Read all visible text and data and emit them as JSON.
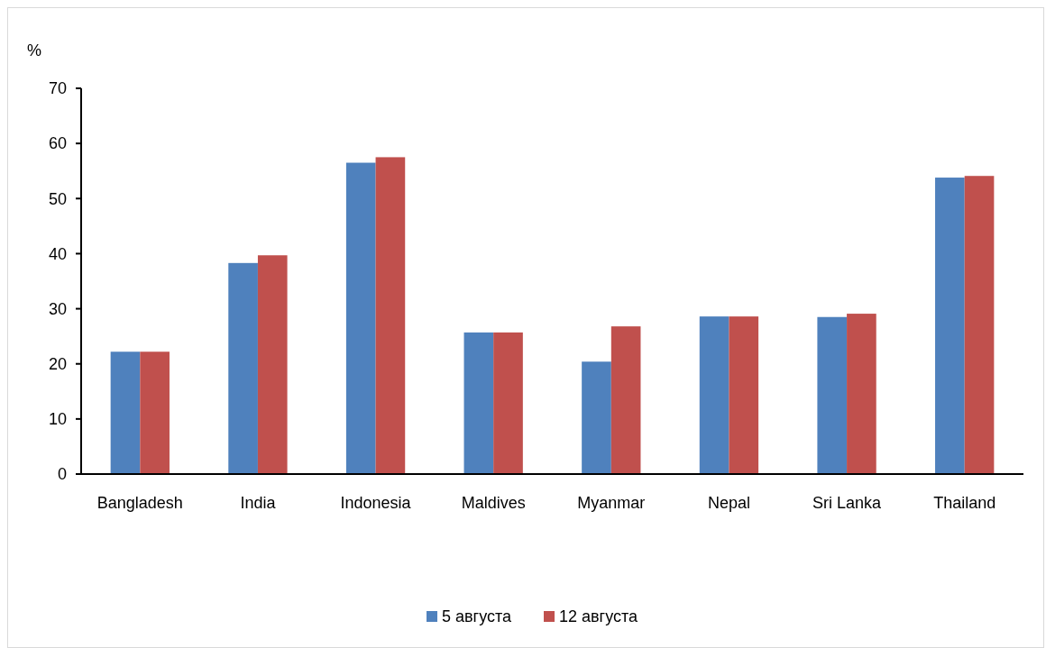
{
  "chart_data": {
    "type": "bar",
    "ylabel": "%",
    "categories": [
      "Bangladesh",
      "India",
      "Indonesia",
      "Maldives",
      "Myanmar",
      "Nepal",
      "Sri Lanka",
      "Thailand"
    ],
    "series": [
      {
        "name": "5 августа",
        "color": "#4f81bd",
        "values": [
          22.2,
          38.3,
          56.5,
          25.7,
          20.4,
          28.6,
          28.5,
          53.8
        ]
      },
      {
        "name": "12 августа",
        "color": "#c0504d",
        "values": [
          22.2,
          39.7,
          57.5,
          25.7,
          26.8,
          28.6,
          29.1,
          54.1
        ]
      }
    ],
    "ylim": [
      0,
      70
    ],
    "yticks": [
      0,
      10,
      20,
      30,
      40,
      50,
      60,
      70
    ],
    "grid": false,
    "legend": "bottom"
  }
}
